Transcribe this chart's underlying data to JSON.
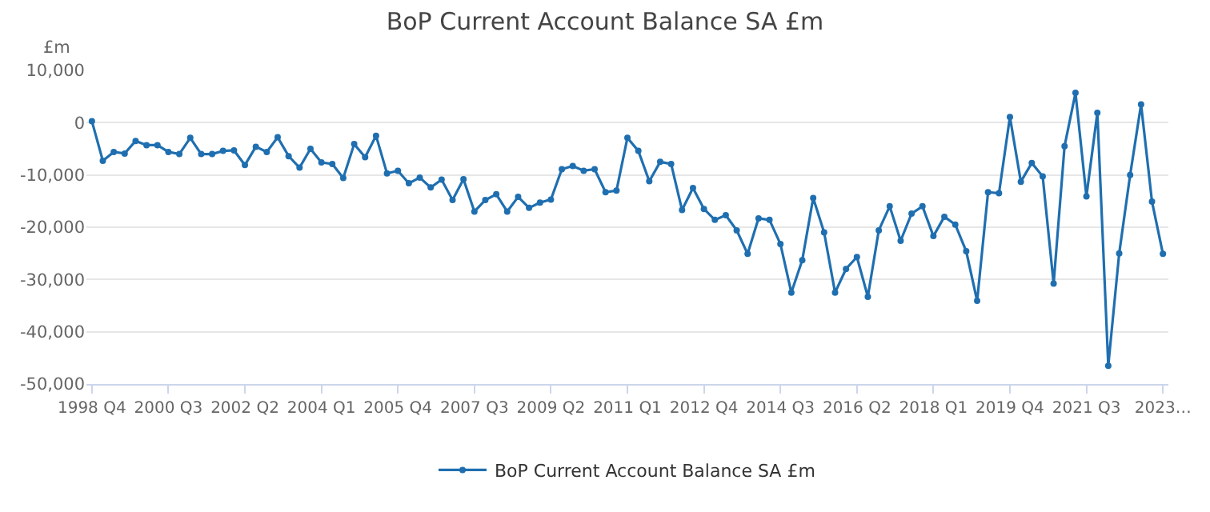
{
  "chart_data": {
    "type": "line",
    "title": "BoP Current Account Balance SA £m",
    "ylabel": "£m",
    "categories": [
      "1998 Q4",
      null,
      null,
      null,
      null,
      null,
      null,
      "2000 Q3",
      null,
      null,
      null,
      null,
      null,
      null,
      "2002 Q2",
      null,
      null,
      null,
      null,
      null,
      null,
      "2004 Q1",
      null,
      null,
      null,
      null,
      null,
      null,
      "2005 Q4",
      null,
      null,
      null,
      null,
      null,
      null,
      "2007 Q3",
      null,
      null,
      null,
      null,
      null,
      null,
      "2009 Q2",
      null,
      null,
      null,
      null,
      null,
      null,
      "2011 Q1",
      null,
      null,
      null,
      null,
      null,
      null,
      "2012 Q4",
      null,
      null,
      null,
      null,
      null,
      null,
      "2014 Q3",
      null,
      null,
      null,
      null,
      null,
      null,
      "2016 Q2",
      null,
      null,
      null,
      null,
      null,
      null,
      "2018 Q1",
      null,
      null,
      null,
      null,
      null,
      null,
      "2019 Q4",
      null,
      null,
      null,
      null,
      null,
      null,
      "2021 Q3",
      null,
      null,
      null,
      null,
      null,
      null,
      "2023…"
    ],
    "series": [
      {
        "name": "BoP Current Account Balance SA £m",
        "color": "#1f6fb0",
        "values": [
          300,
          -7300,
          -5600,
          -5900,
          -3500,
          -4300,
          -4300,
          -5600,
          -6000,
          -2900,
          -6000,
          -6000,
          -5400,
          -5300,
          -8100,
          -4600,
          -5600,
          -2800,
          -6400,
          -8600,
          -5000,
          -7600,
          -7900,
          -10600,
          -4100,
          -6600,
          -2500,
          -9700,
          -9200,
          -11600,
          -10500,
          -12400,
          -10900,
          -14800,
          -10800,
          -17000,
          -14800,
          -13700,
          -17000,
          -14200,
          -16300,
          -15300,
          -14700,
          -8900,
          -8300,
          -9200,
          -8900,
          -13300,
          -13000,
          -2900,
          -5400,
          -11200,
          -7500,
          -7900,
          -16700,
          -12500,
          -16500,
          -18600,
          -17700,
          -20600,
          -25100,
          -18300,
          -18600,
          -23200,
          -32500,
          -26300,
          -14400,
          -21000,
          -32500,
          -28000,
          -25700,
          -33300,
          -20600,
          -16000,
          -22600,
          -17400,
          -16000,
          -21700,
          -18000,
          -19500,
          -24600,
          -34100,
          -13300,
          -13500,
          1100,
          -11300,
          -7700,
          -10300,
          -30800,
          -4500,
          5700,
          -14100,
          1900,
          -46500,
          -25000,
          -10000,
          3500,
          -15100,
          -25100
        ]
      }
    ],
    "ylim": [
      -50000,
      10000
    ],
    "yticks": [
      {
        "value": -50000,
        "label": "-50,000"
      },
      {
        "value": -40000,
        "label": "-40,000"
      },
      {
        "value": -30000,
        "label": "-30,000"
      },
      {
        "value": -20000,
        "label": "-20,000"
      },
      {
        "value": -10000,
        "label": "-10,000"
      },
      {
        "value": 0,
        "label": "0"
      },
      {
        "value": 10000,
        "label": "10,000"
      }
    ],
    "grid": "y",
    "legend": "bottom",
    "marker": "circle",
    "line_style": "solid"
  }
}
